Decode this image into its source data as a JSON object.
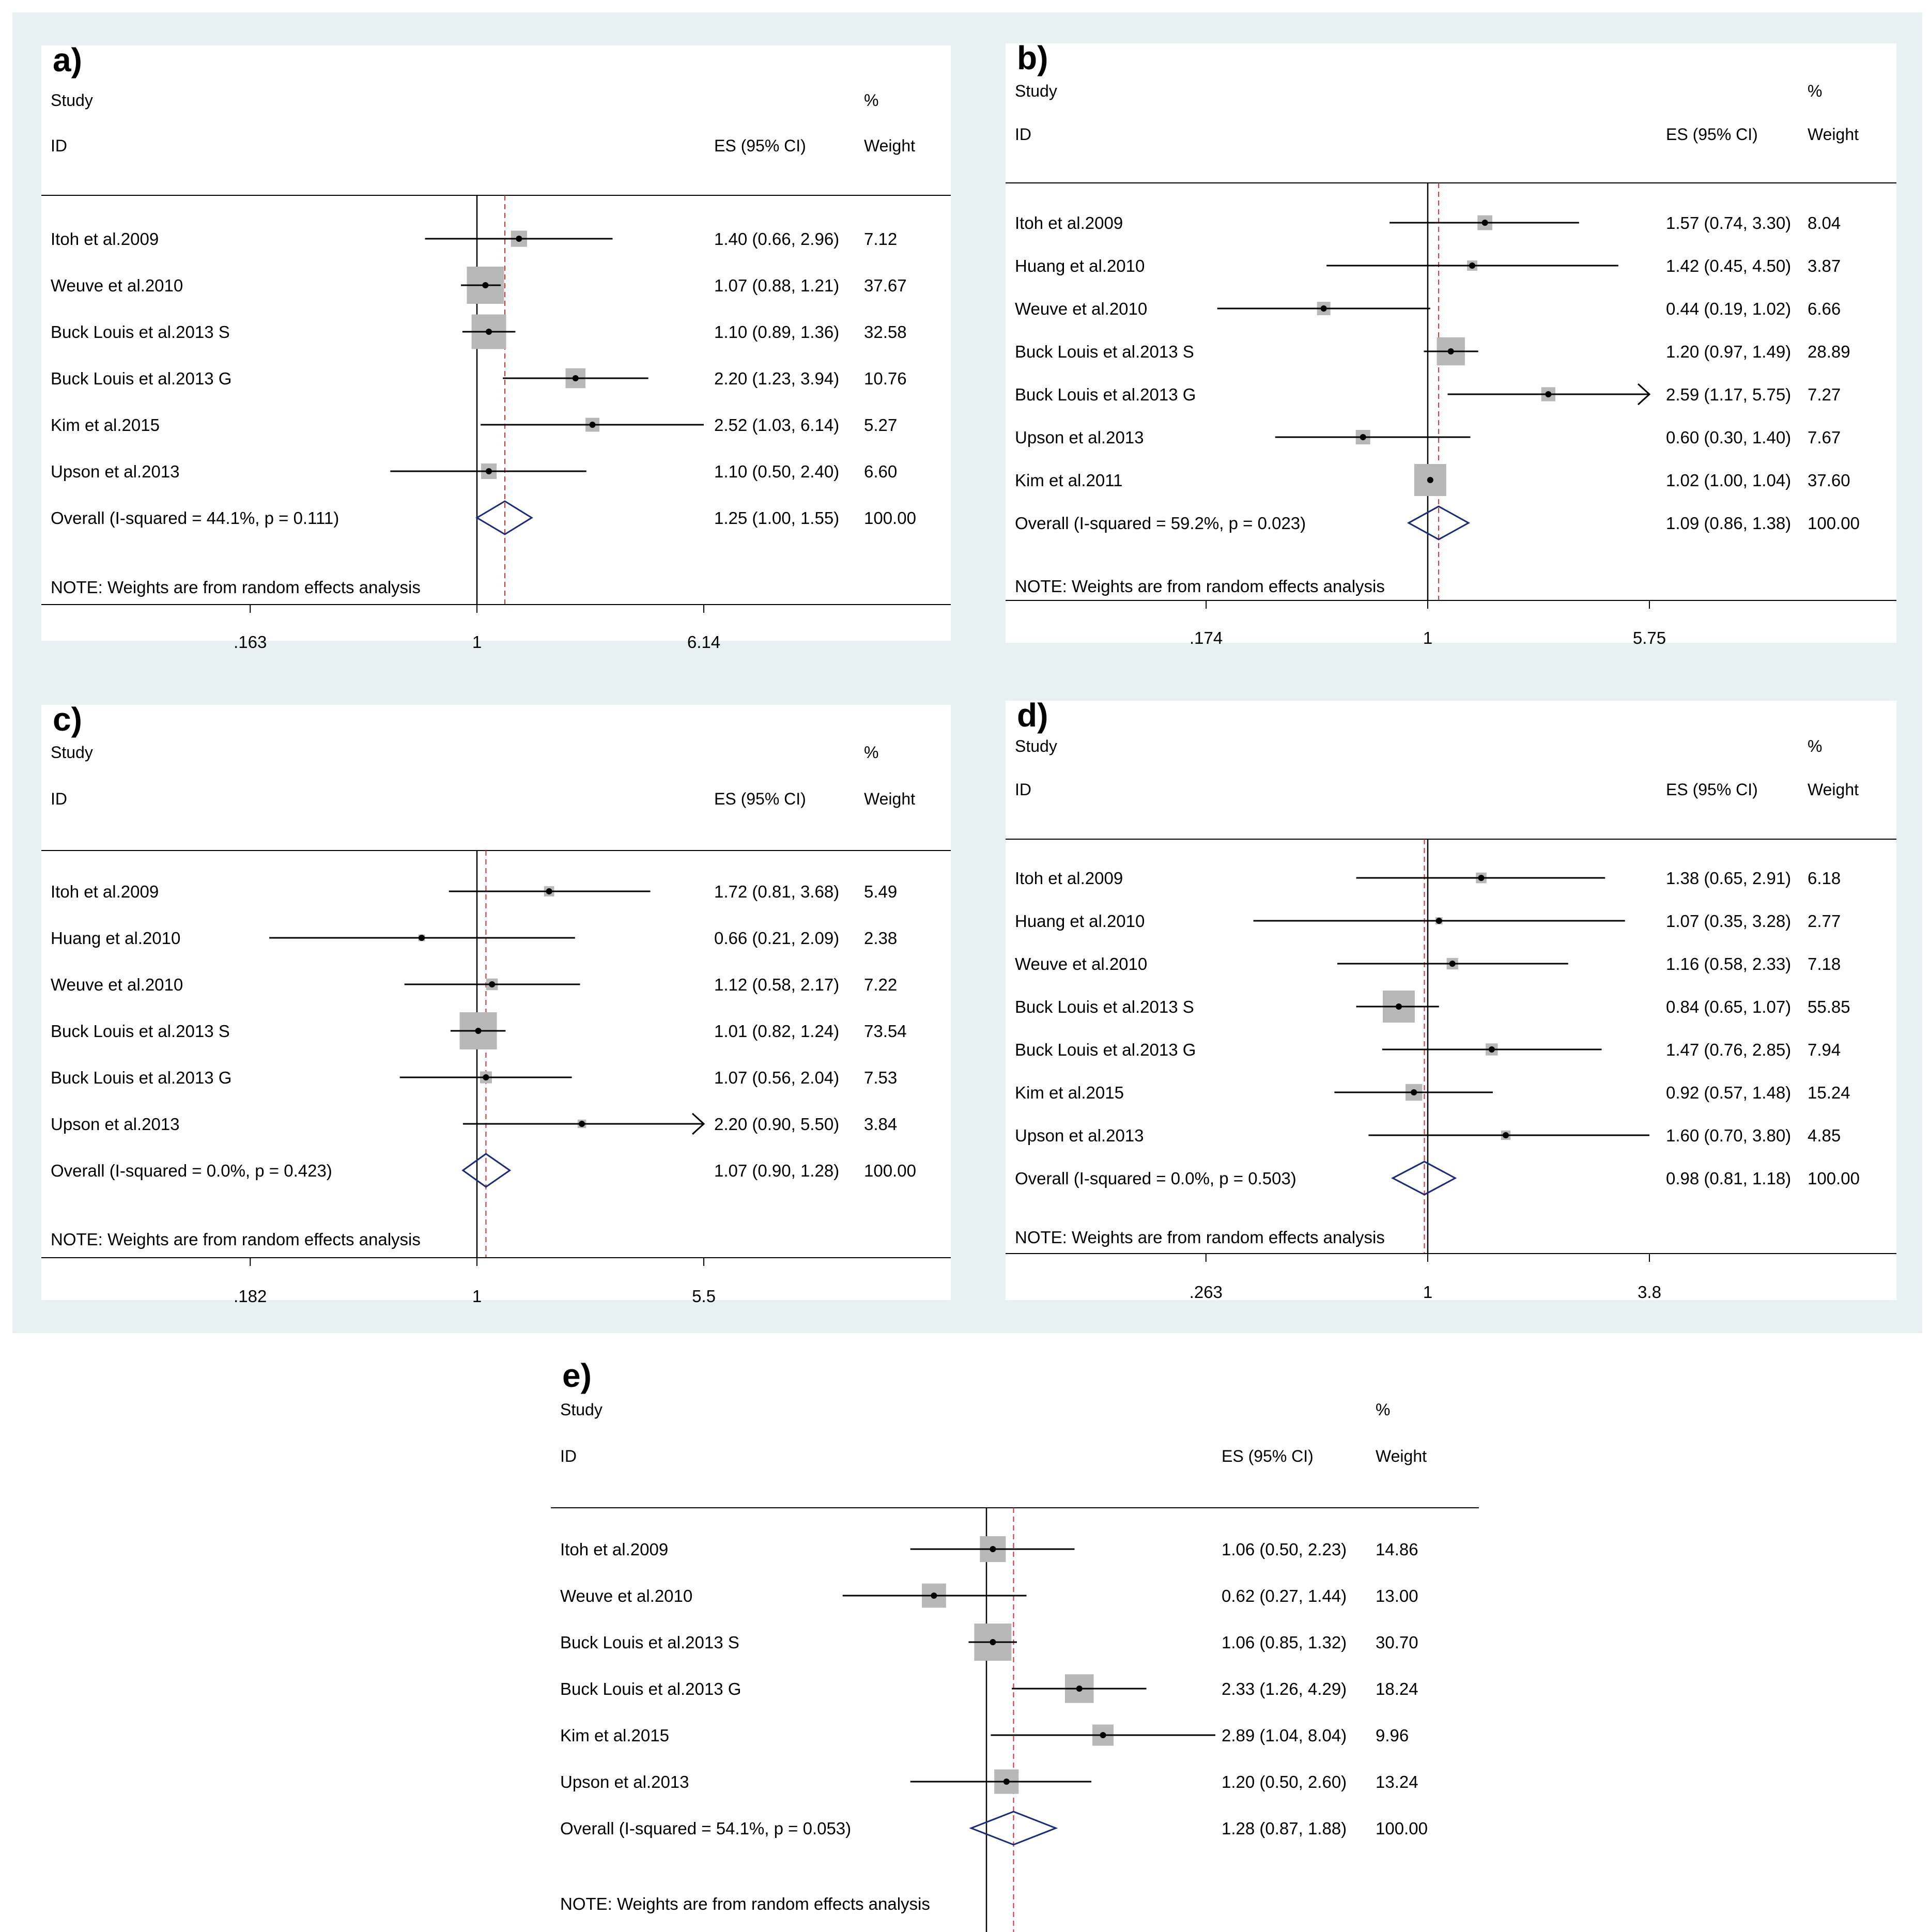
{
  "chart_data": [
    {
      "type": "forest",
      "panel": "a)",
      "header": {
        "study": "Study",
        "id": "ID",
        "es": "ES (95% CI)",
        "pct": "%",
        "weight": "Weight"
      },
      "ticks": [
        {
          "label": ".163",
          "value": 0.163
        },
        {
          "label": "1",
          "value": 1
        },
        {
          "label": "6.14",
          "value": 6.14
        }
      ],
      "axis_range": [
        0.163,
        6.14
      ],
      "overall_line": 1.25,
      "studies": [
        {
          "label": "Itoh et al.2009",
          "es": 1.4,
          "lo": 0.66,
          "hi": 2.96,
          "es_text": "1.40 (0.66, 2.96)",
          "weight": "7.12",
          "w": 7.12
        },
        {
          "label": "Weuve et al.2010",
          "es": 1.07,
          "lo": 0.88,
          "hi": 1.21,
          "es_text": "1.07 (0.88, 1.21)",
          "weight": "37.67",
          "w": 37.67
        },
        {
          "label": "Buck Louis et al.2013 S",
          "es": 1.1,
          "lo": 0.89,
          "hi": 1.36,
          "es_text": "1.10 (0.89, 1.36)",
          "weight": "32.58",
          "w": 32.58
        },
        {
          "label": "Buck Louis et al.2013 G",
          "es": 2.2,
          "lo": 1.23,
          "hi": 3.94,
          "es_text": "2.20 (1.23, 3.94)",
          "weight": "10.76",
          "w": 10.76
        },
        {
          "label": "Kim et al.2015",
          "es": 2.52,
          "lo": 1.03,
          "hi": 6.14,
          "es_text": "2.52 (1.03, 6.14)",
          "weight": "5.27",
          "w": 5.27
        },
        {
          "label": "Upson et al.2013",
          "es": 1.1,
          "lo": 0.5,
          "hi": 2.4,
          "es_text": "1.10 (0.50, 2.40)",
          "weight": "6.60",
          "w": 6.6
        }
      ],
      "overall": {
        "label": "Overall  (I-squared = 44.1%, p = 0.111)",
        "es": 1.25,
        "lo": 1.0,
        "hi": 1.55,
        "es_text": "1.25 (1.00, 1.55)",
        "weight": "100.00"
      },
      "note": "NOTE: Weights are from random effects analysis"
    },
    {
      "type": "forest",
      "panel": "b)",
      "header": {
        "study": "Study",
        "id": "ID",
        "es": "ES (95% CI)",
        "pct": "%",
        "weight": "Weight"
      },
      "ticks": [
        {
          "label": ".174",
          "value": 0.174
        },
        {
          "label": "1",
          "value": 1
        },
        {
          "label": "5.75",
          "value": 5.75
        }
      ],
      "axis_range": [
        0.174,
        5.75
      ],
      "overall_line": 1.09,
      "studies": [
        {
          "label": "Itoh et al.2009",
          "es": 1.57,
          "lo": 0.74,
          "hi": 3.3,
          "es_text": "1.57 (0.74, 3.30)",
          "weight": "8.04",
          "w": 8.04
        },
        {
          "label": "Huang et al.2010",
          "es": 1.42,
          "lo": 0.45,
          "hi": 4.5,
          "es_text": "1.42 (0.45, 4.50)",
          "weight": "3.87",
          "w": 3.87
        },
        {
          "label": "Weuve et al.2010",
          "es": 0.44,
          "lo": 0.19,
          "hi": 1.02,
          "es_text": "0.44 (0.19, 1.02)",
          "weight": "6.66",
          "w": 6.66
        },
        {
          "label": "Buck Louis et al.2013 S",
          "es": 1.2,
          "lo": 0.97,
          "hi": 1.49,
          "es_text": "1.20 (0.97, 1.49)",
          "weight": "28.89",
          "w": 28.89
        },
        {
          "label": "Buck Louis et al.2013 G",
          "es": 2.59,
          "lo": 1.17,
          "hi": 5.75,
          "es_text": "2.59 (1.17, 5.75)",
          "weight": "7.27",
          "w": 7.27,
          "arrow": true
        },
        {
          "label": "Upson et al.2013",
          "es": 0.6,
          "lo": 0.3,
          "hi": 1.4,
          "es_text": "0.60 (0.30, 1.40)",
          "weight": "7.67",
          "w": 7.67
        },
        {
          "label": "Kim et al.2011",
          "es": 1.02,
          "lo": 1.0,
          "hi": 1.04,
          "es_text": "1.02 (1.00, 1.04)",
          "weight": "37.60",
          "w": 37.6
        }
      ],
      "overall": {
        "label": "Overall  (I-squared = 59.2%, p = 0.023)",
        "es": 1.09,
        "lo": 0.86,
        "hi": 1.38,
        "es_text": "1.09 (0.86, 1.38)",
        "weight": "100.00"
      },
      "note": "NOTE: Weights are from random effects analysis"
    },
    {
      "type": "forest",
      "panel": "c)",
      "header": {
        "study": "Study",
        "id": "ID",
        "es": "ES (95% CI)",
        "pct": "%",
        "weight": "Weight"
      },
      "ticks": [
        {
          "label": ".182",
          "value": 0.182
        },
        {
          "label": "1",
          "value": 1
        },
        {
          "label": "5.5",
          "value": 5.5
        }
      ],
      "axis_range": [
        0.182,
        5.5
      ],
      "overall_line": 1.07,
      "studies": [
        {
          "label": "Itoh et al.2009",
          "es": 1.72,
          "lo": 0.81,
          "hi": 3.68,
          "es_text": "1.72 (0.81, 3.68)",
          "weight": "5.49",
          "w": 5.49
        },
        {
          "label": "Huang et al.2010",
          "es": 0.66,
          "lo": 0.21,
          "hi": 2.09,
          "es_text": "0.66 (0.21, 2.09)",
          "weight": "2.38",
          "w": 2.38
        },
        {
          "label": "Weuve et al.2010",
          "es": 1.12,
          "lo": 0.58,
          "hi": 2.17,
          "es_text": "1.12 (0.58, 2.17)",
          "weight": "7.22",
          "w": 7.22
        },
        {
          "label": "Buck Louis et al.2013 S",
          "es": 1.01,
          "lo": 0.82,
          "hi": 1.24,
          "es_text": "1.01 (0.82, 1.24)",
          "weight": "73.54",
          "w": 73.54
        },
        {
          "label": "Buck Louis et al.2013 G",
          "es": 1.07,
          "lo": 0.56,
          "hi": 2.04,
          "es_text": "1.07 (0.56, 2.04)",
          "weight": "7.53",
          "w": 7.53
        },
        {
          "label": "Upson et al.2013",
          "es": 2.2,
          "lo": 0.9,
          "hi": 5.5,
          "es_text": "2.20 (0.90, 5.50)",
          "weight": "3.84",
          "w": 3.84,
          "arrow": true
        }
      ],
      "overall": {
        "label": "Overall  (I-squared = 0.0%, p = 0.423)",
        "es": 1.07,
        "lo": 0.9,
        "hi": 1.28,
        "es_text": "1.07 (0.90, 1.28)",
        "weight": "100.00"
      },
      "note": "NOTE: Weights are from random effects analysis"
    },
    {
      "type": "forest",
      "panel": "d)",
      "header": {
        "study": "Study",
        "id": "ID",
        "es": "ES (95% CI)",
        "pct": "%",
        "weight": "Weight"
      },
      "ticks": [
        {
          "label": ".263",
          "value": 0.263
        },
        {
          "label": "1",
          "value": 1
        },
        {
          "label": "3.8",
          "value": 3.8
        }
      ],
      "axis_range": [
        0.263,
        3.8
      ],
      "overall_line": 0.98,
      "studies": [
        {
          "label": "Itoh et al.2009",
          "es": 1.38,
          "lo": 0.65,
          "hi": 2.91,
          "es_text": "1.38 (0.65, 2.91)",
          "weight": "6.18",
          "w": 6.18
        },
        {
          "label": "Huang et al.2010",
          "es": 1.07,
          "lo": 0.35,
          "hi": 3.28,
          "es_text": "1.07 (0.35, 3.28)",
          "weight": "2.77",
          "w": 2.77
        },
        {
          "label": "Weuve et al.2010",
          "es": 1.16,
          "lo": 0.58,
          "hi": 2.33,
          "es_text": "1.16 (0.58, 2.33)",
          "weight": "7.18",
          "w": 7.18
        },
        {
          "label": "Buck Louis et al.2013 S",
          "es": 0.84,
          "lo": 0.65,
          "hi": 1.07,
          "es_text": "0.84 (0.65, 1.07)",
          "weight": "55.85",
          "w": 55.85
        },
        {
          "label": "Buck Louis et al.2013 G",
          "es": 1.47,
          "lo": 0.76,
          "hi": 2.85,
          "es_text": "1.47 (0.76, 2.85)",
          "weight": "7.94",
          "w": 7.94
        },
        {
          "label": "Kim et al.2015",
          "es": 0.92,
          "lo": 0.57,
          "hi": 1.48,
          "es_text": "0.92 (0.57, 1.48)",
          "weight": "15.24",
          "w": 15.24
        },
        {
          "label": "Upson et al.2013",
          "es": 1.6,
          "lo": 0.7,
          "hi": 3.8,
          "es_text": "1.60 (0.70, 3.80)",
          "weight": "4.85",
          "w": 4.85
        }
      ],
      "overall": {
        "label": "Overall  (I-squared = 0.0%, p = 0.503)",
        "es": 0.98,
        "lo": 0.81,
        "hi": 1.18,
        "es_text": "0.98 (0.81, 1.18)",
        "weight": "100.00"
      },
      "note": "NOTE: Weights are from random effects analysis"
    },
    {
      "type": "forest",
      "panel": "e)",
      "header": {
        "study": "Study",
        "id": "ID",
        "es": "ES (95% CI)",
        "pct": "%",
        "weight": "Weight"
      },
      "ticks": [],
      "axis_range": [
        0.124,
        8.04
      ],
      "overall_line": 1.28,
      "studies": [
        {
          "label": "Itoh et al.2009",
          "es": 1.06,
          "lo": 0.5,
          "hi": 2.23,
          "es_text": "1.06 (0.50, 2.23)",
          "weight": "14.86",
          "w": 14.86
        },
        {
          "label": "Weuve et al.2010",
          "es": 0.62,
          "lo": 0.27,
          "hi": 1.44,
          "es_text": "0.62 (0.27, 1.44)",
          "weight": "13.00",
          "w": 13.0
        },
        {
          "label": "Buck Louis et al.2013 S",
          "es": 1.06,
          "lo": 0.85,
          "hi": 1.32,
          "es_text": "1.06 (0.85, 1.32)",
          "weight": "30.70",
          "w": 30.7
        },
        {
          "label": "Buck Louis et al.2013 G",
          "es": 2.33,
          "lo": 1.26,
          "hi": 4.29,
          "es_text": "2.33 (1.26, 4.29)",
          "weight": "18.24",
          "w": 18.24
        },
        {
          "label": "Kim et al.2015",
          "es": 2.89,
          "lo": 1.04,
          "hi": 8.04,
          "es_text": "2.89 (1.04, 8.04)",
          "weight": "9.96",
          "w": 9.96
        },
        {
          "label": "Upson et al.2013",
          "es": 1.2,
          "lo": 0.5,
          "hi": 2.6,
          "es_text": "1.20 (0.50, 2.60)",
          "weight": "13.24",
          "w": 13.24
        }
      ],
      "overall": {
        "label": "Overall  (I-squared = 54.1%, p = 0.053)",
        "es": 1.28,
        "lo": 0.87,
        "hi": 1.88,
        "es_text": "1.28 (0.87, 1.88)",
        "weight": "100.00"
      },
      "note": "NOTE: Weights are from random effects analysis"
    }
  ]
}
